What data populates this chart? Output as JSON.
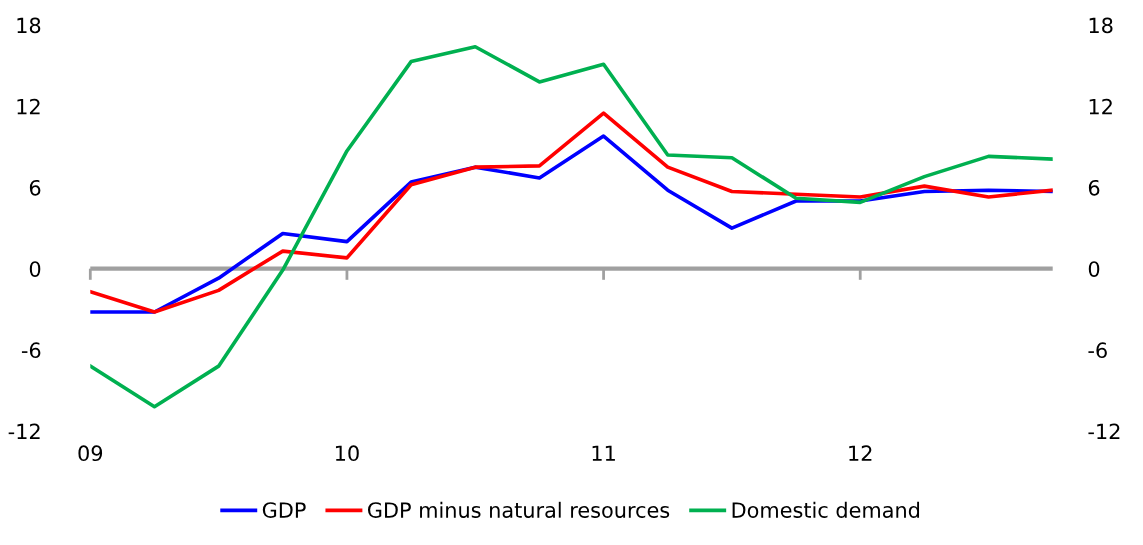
{
  "chart_data": {
    "type": "line",
    "x": [
      9,
      9.25,
      9.5,
      9.75,
      10,
      10.25,
      10.5,
      10.75,
      11,
      11.25,
      11.5,
      11.75,
      12,
      12.25,
      12.5,
      12.75
    ],
    "series": [
      {
        "name": "GDP",
        "color": "#0000ff",
        "values": [
          -3.2,
          -3.2,
          -0.7,
          2.6,
          2.0,
          6.4,
          7.5,
          6.7,
          9.8,
          5.8,
          3.0,
          5.0,
          5.0,
          5.7,
          5.8,
          5.7
        ]
      },
      {
        "name": "GDP minus natural resources",
        "color": "#ff0000",
        "values": [
          -1.7,
          -3.2,
          -1.6,
          1.3,
          0.8,
          6.2,
          7.5,
          7.6,
          11.5,
          7.5,
          5.7,
          5.5,
          5.3,
          6.1,
          5.3,
          5.8
        ]
      },
      {
        "name": "Domestic demand",
        "color": "#00b050",
        "values": [
          -7.2,
          -10.2,
          -7.2,
          -0.1,
          8.7,
          15.3,
          16.4,
          13.8,
          15.1,
          8.4,
          8.2,
          5.2,
          4.9,
          6.8,
          8.3,
          8.1
        ]
      }
    ],
    "xlim": [
      9,
      12.75
    ],
    "xticks": [
      {
        "value": 9,
        "label": "09"
      },
      {
        "value": 10,
        "label": "10"
      },
      {
        "value": 11,
        "label": "11"
      },
      {
        "value": 12,
        "label": "12"
      }
    ],
    "ylim": [
      -12,
      18
    ],
    "yticks": [
      -12,
      -6,
      0,
      6,
      12,
      18
    ],
    "y2lim": [
      -12,
      18
    ],
    "ref_lines": [
      {
        "axis": "y",
        "value": 0,
        "color": "#a0a0a0"
      }
    ],
    "y2ticks": [
      -12,
      -6,
      0,
      6,
      12,
      18
    ],
    "grid": false,
    "legend": "bottom",
    "line_style": "solid",
    "marker": "none"
  }
}
